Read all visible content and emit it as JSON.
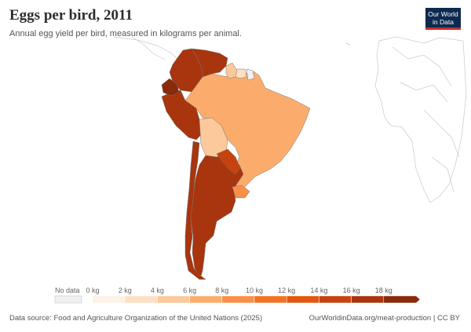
{
  "header": {
    "title": "Eggs per bird, 2011",
    "subtitle": "Annual egg yield per bird, measured in kilograms per animal."
  },
  "logo": {
    "text": "Our World in Data"
  },
  "legend": {
    "no_data_label": "No data",
    "tick_labels": [
      "0 kg",
      "2 kg",
      "4 kg",
      "6 kg",
      "8 kg",
      "10 kg",
      "12 kg",
      "14 kg",
      "16 kg",
      "18 kg"
    ],
    "colors": [
      "#fef1e6",
      "#fddfc3",
      "#fcc99a",
      "#fbac6c",
      "#f98f48",
      "#f27224",
      "#e2560f",
      "#c6420e",
      "#a8350e",
      "#8a2a09"
    ]
  },
  "map": {
    "no_data_color": "#f0f0f0",
    "regions": [
      {
        "name": "Brazil",
        "color": "#fbac6c"
      },
      {
        "name": "Argentina",
        "color": "#a8350e"
      },
      {
        "name": "Chile",
        "color": "#a8350e"
      },
      {
        "name": "Peru",
        "color": "#a8350e"
      },
      {
        "name": "Colombia",
        "color": "#a8350e"
      },
      {
        "name": "Venezuela",
        "color": "#a8350e"
      },
      {
        "name": "Ecuador",
        "color": "#8a2a09"
      },
      {
        "name": "Bolivia",
        "color": "#fcc99a"
      },
      {
        "name": "Paraguay",
        "color": "#c6420e"
      },
      {
        "name": "Uruguay",
        "color": "#f98f48"
      },
      {
        "name": "Guyana",
        "color": "#fcc99a"
      },
      {
        "name": "Suriname",
        "color": "#fddfc3"
      },
      {
        "name": "French Guiana",
        "color": "#f0f0f0"
      }
    ]
  },
  "footer": {
    "source": "Data source: Food and Agriculture Organization of the United Nations (2025)",
    "credit": "OurWorldinData.org/meat-production | CC BY"
  }
}
